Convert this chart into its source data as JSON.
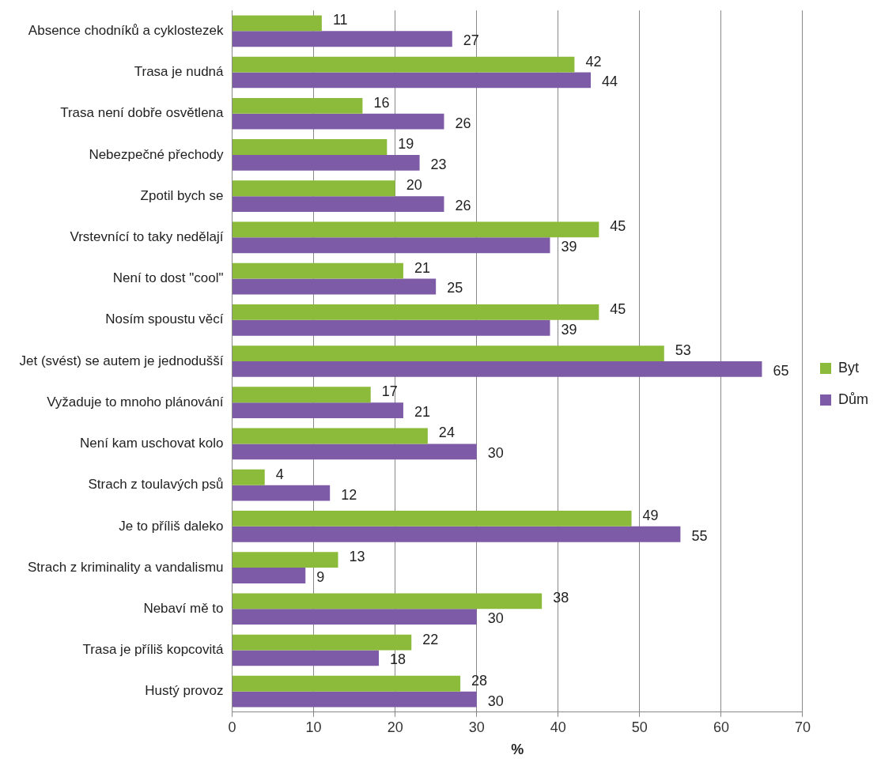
{
  "chart_data": {
    "type": "bar",
    "orientation": "horizontal",
    "categories": [
      "Absence chodníků a cyklostezek",
      "Trasa je nudná",
      "Trasa není dobře osvětlena",
      "Nebezpečné přechody",
      "Zpotil bych se",
      "Vrstevnící to taky nedělají",
      "Není to dost \"cool\"",
      "Nosím spoustu věcí",
      "Jet (svést) se autem je jednodušší",
      "Vyžaduje to mnoho plánování",
      "Není kam uschovat kolo",
      "Strach z toulavých psů",
      "Je to příliš daleko",
      "Strach z kriminality a vandalismu",
      "Nebaví mě to",
      "Trasa je příliš kopcovitá",
      "Hustý provoz"
    ],
    "series": [
      {
        "name": "Byt",
        "color": "#8cbb3c",
        "values": [
          11,
          42,
          16,
          19,
          20,
          45,
          21,
          45,
          53,
          17,
          24,
          4,
          49,
          13,
          38,
          22,
          28
        ]
      },
      {
        "name": "Dům",
        "color": "#7d5ba6",
        "values": [
          27,
          44,
          26,
          23,
          26,
          39,
          25,
          39,
          65,
          21,
          30,
          12,
          55,
          9,
          30,
          18,
          30
        ]
      }
    ],
    "xlim": [
      0,
      70
    ],
    "xticks": [
      0,
      10,
      20,
      30,
      40,
      50,
      60,
      70
    ],
    "xlabel": "%",
    "grid": "x",
    "legend": "right",
    "data_labels": true
  }
}
